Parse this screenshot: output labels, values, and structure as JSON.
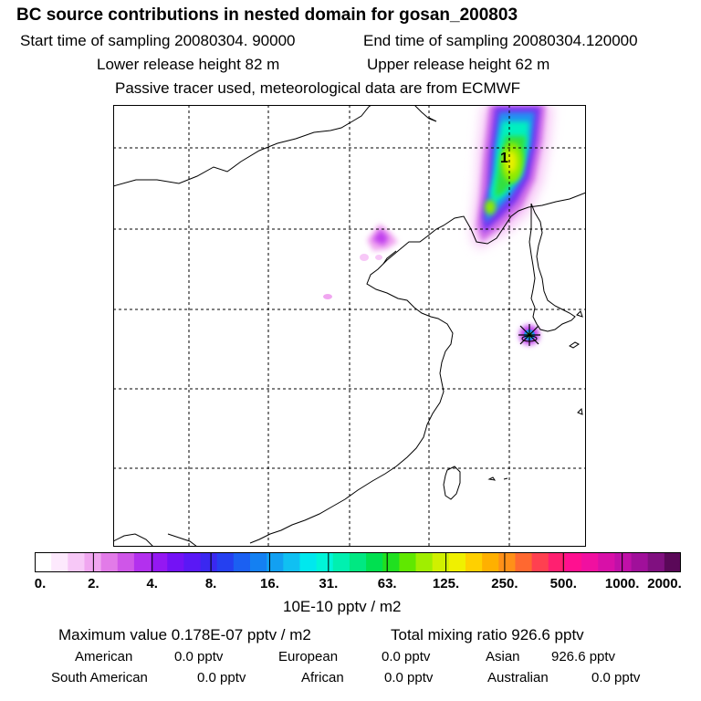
{
  "header": {
    "title": "BC  source contributions in nested domain for gosan_200803",
    "start_label": "Start time of sampling 20080304. 90000",
    "end_label": "End time of sampling 20080304.120000",
    "lower_label": "Lower release height   82 m",
    "upper_label": "Upper release height   62 m",
    "tracer_note": "Passive tracer used, meteorological data are from ECMWF"
  },
  "map": {
    "site_marker": "x-star-marker",
    "peak_label": "1"
  },
  "colorbar": {
    "ticks": [
      "0.",
      "2.",
      "4.",
      "8.",
      "16.",
      "31.",
      "63.",
      "125.",
      "250.",
      "500.",
      "1000.",
      "2000."
    ],
    "units": "10E-10 pptv / m2",
    "colors": [
      "#ffffff",
      "#fde9fd",
      "#f7c8f7",
      "#f0a6f0",
      "#e27be8",
      "#cf56e8",
      "#b330ee",
      "#9418f2",
      "#7412f5",
      "#5a18f5",
      "#3a28f0",
      "#2540f0",
      "#1b60f2",
      "#1480f2",
      "#12a0f2",
      "#10c0f2",
      "#00e8ee",
      "#00f5d8",
      "#00f0b0",
      "#00e882",
      "#00e050",
      "#20e020",
      "#60e800",
      "#a0ee00",
      "#d0f000",
      "#f0f000",
      "#ffd000",
      "#ffb000",
      "#ff9018",
      "#ff6830",
      "#ff4050",
      "#ff2070",
      "#ff1090",
      "#f010a0",
      "#d810a8",
      "#c010a8",
      "#a0109a",
      "#801080",
      "#5a0858"
    ]
  },
  "footer": {
    "max_label": "Maximum value  0.178E-07 pptv / m2",
    "total_label": "Total mixing ratio      926.6 pptv",
    "american_label": "American",
    "american_value": "0.0 pptv",
    "european_label": "European",
    "european_value": "0.0 pptv",
    "asian_label": "Asian",
    "asian_value": "926.6 pptv",
    "south_american_label": "South American",
    "south_american_value": "0.0 pptv",
    "african_label": "African",
    "african_value": "0.0 pptv",
    "australian_label": "Australian",
    "australian_value": "0.0 pptv"
  }
}
